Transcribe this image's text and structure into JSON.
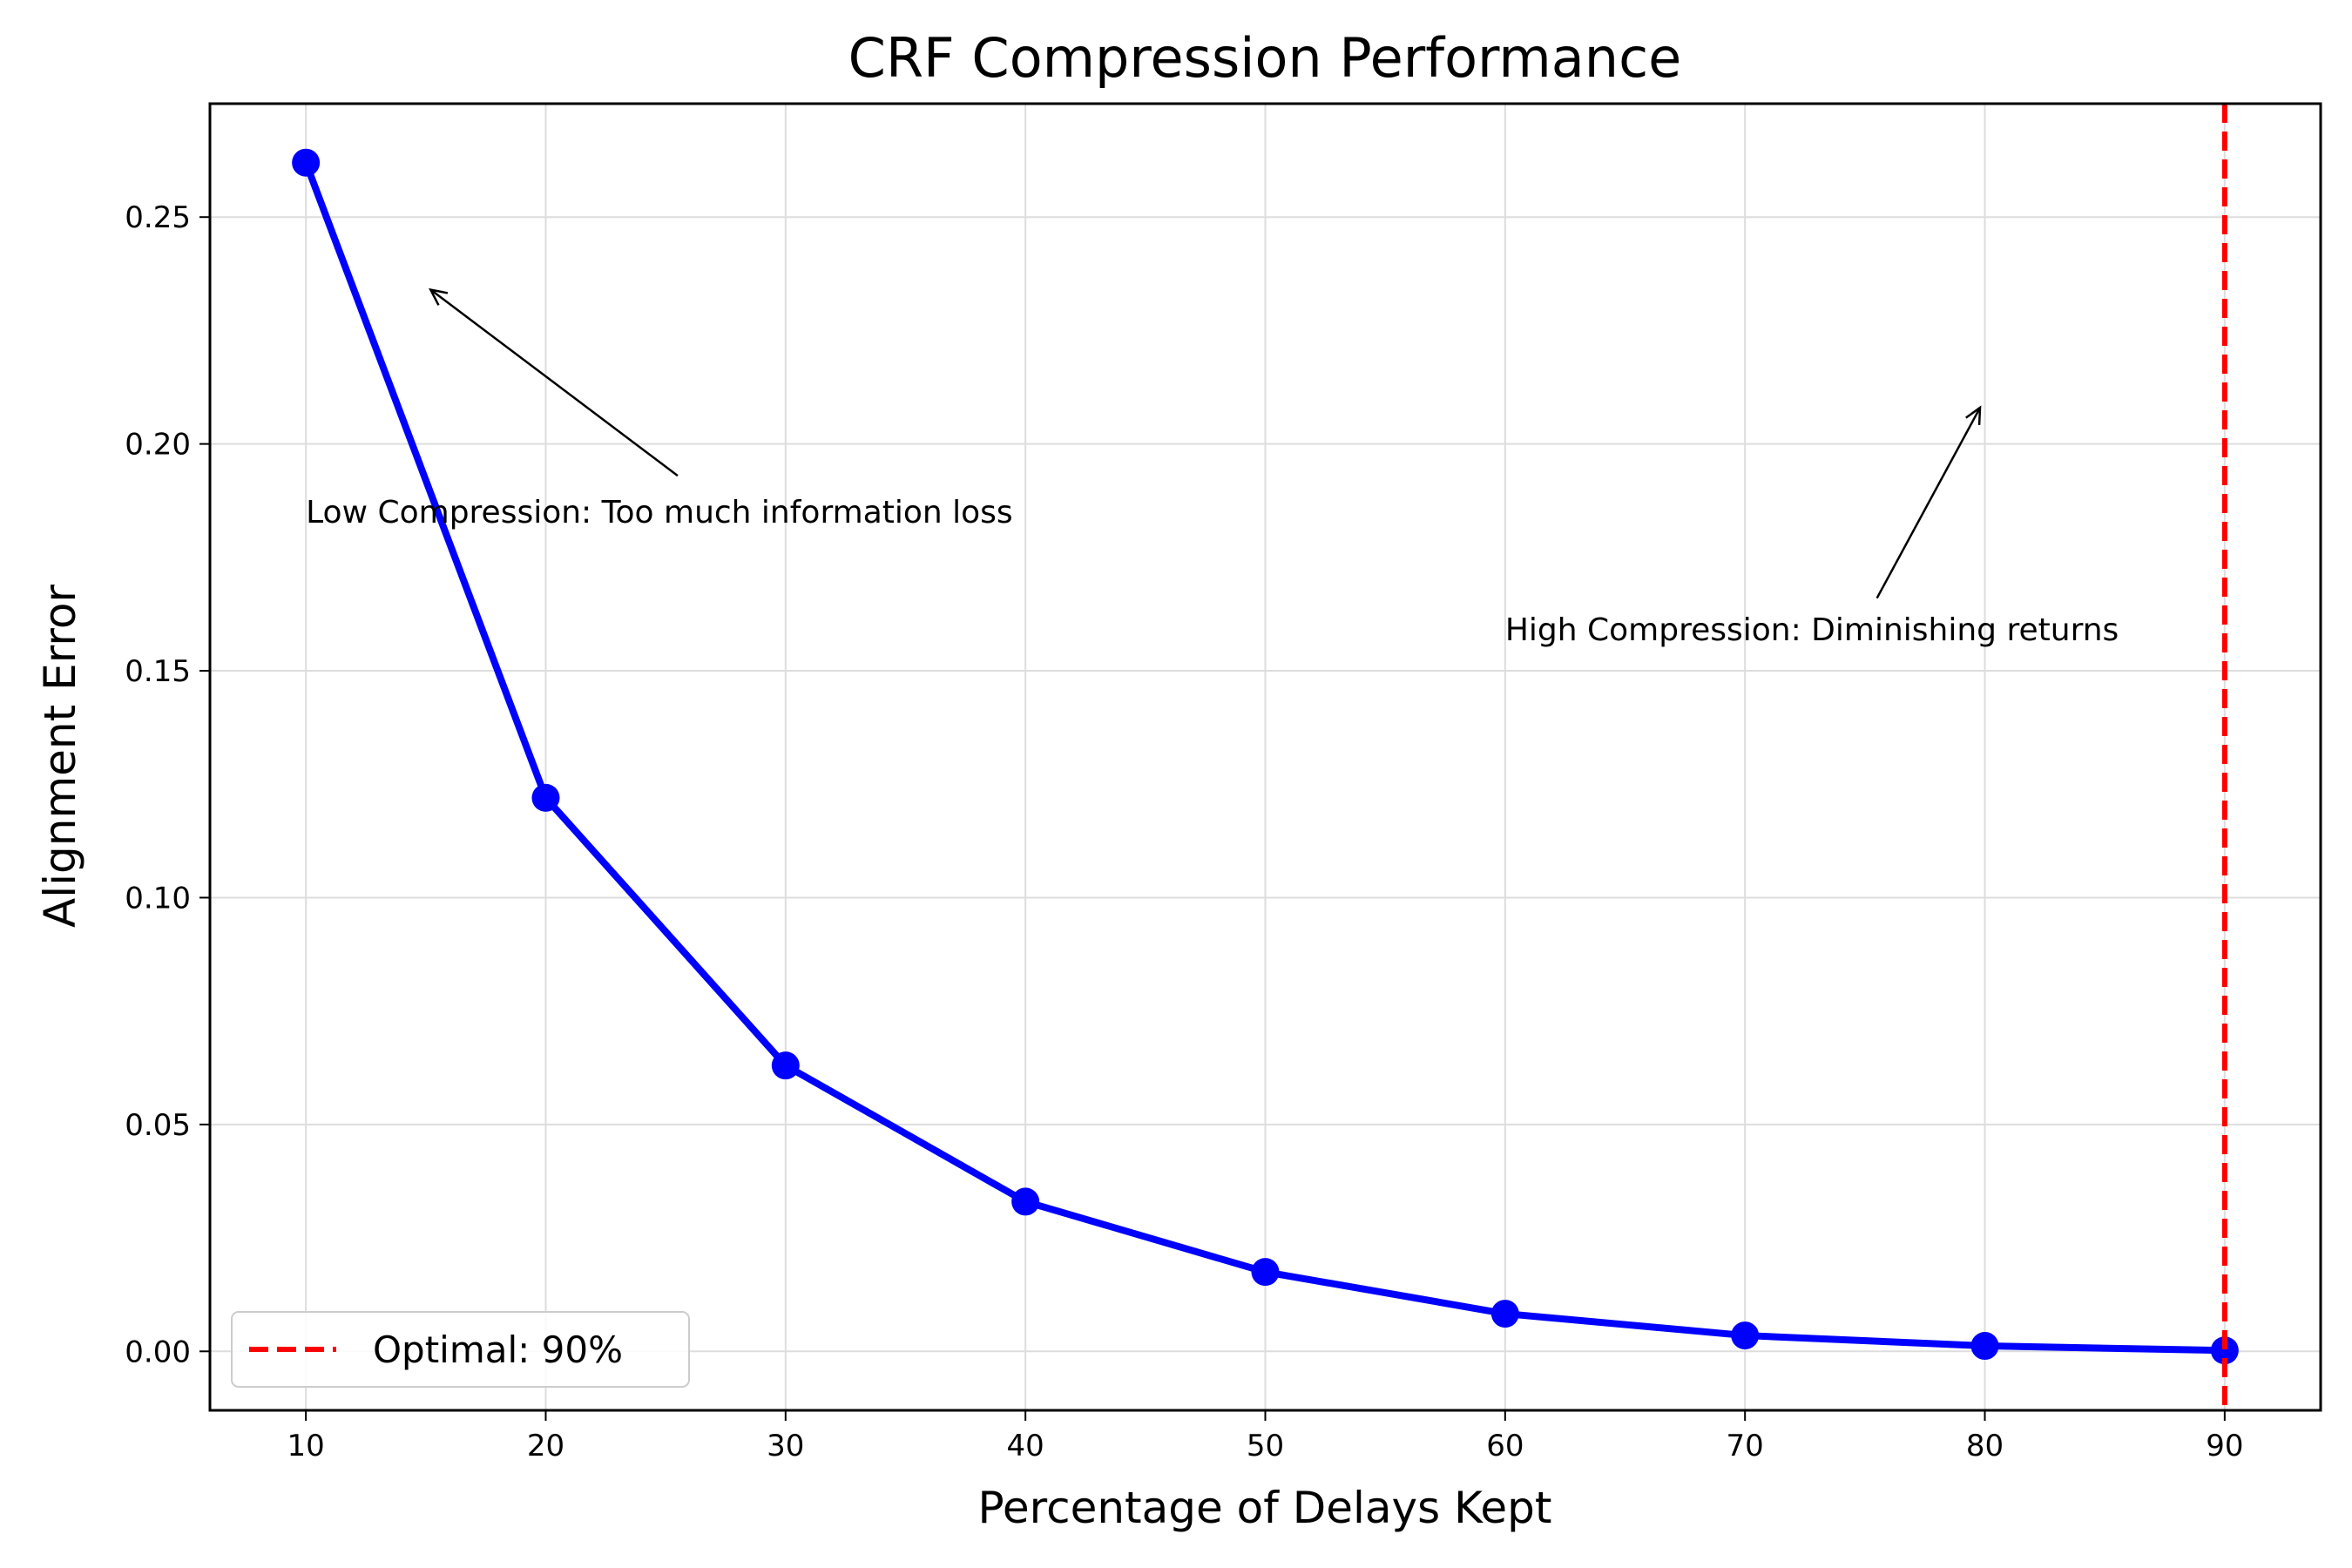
{
  "chart_data": {
    "type": "line",
    "title": "CRF Compression Performance",
    "xlabel": "Percentage of Delays Kept",
    "ylabel": "Alignment Error",
    "x": [
      10,
      20,
      30,
      40,
      50,
      60,
      70,
      80,
      90
    ],
    "series": [
      {
        "values": [
          0.262,
          0.122,
          0.063,
          0.033,
          0.0175,
          0.0083,
          0.0035,
          0.0012,
          0.0002
        ],
        "color": "#0000ff",
        "marker": "circle"
      }
    ],
    "xlim": [
      6,
      94
    ],
    "ylim": [
      -0.013,
      0.275
    ],
    "xticks": [
      10,
      20,
      30,
      40,
      50,
      60,
      70,
      80,
      90
    ],
    "yticks": [
      0.0,
      0.05,
      0.1,
      0.15,
      0.2,
      0.25
    ],
    "ytick_labels": [
      "0.00",
      "0.05",
      "0.10",
      "0.15",
      "0.20",
      "0.25"
    ],
    "grid": true,
    "vline": {
      "x": 90,
      "color": "#ff0000",
      "style": "dashed",
      "label": "Optimal: 90%"
    },
    "legend": {
      "position": "lower-left",
      "entries": [
        "Optimal: 90%"
      ]
    },
    "annotations": [
      {
        "text": "Low Compression: Too much information loss",
        "text_x": 10,
        "text_y": 0.185,
        "arrow_from": [
          25.5,
          0.193
        ],
        "arrow_to": [
          15.2,
          0.234
        ]
      },
      {
        "text": "High Compression: Diminishing returns",
        "text_x": 60,
        "text_y": 0.159,
        "arrow_from": [
          75.5,
          0.166
        ],
        "arrow_to": [
          79.8,
          0.208
        ]
      }
    ]
  }
}
